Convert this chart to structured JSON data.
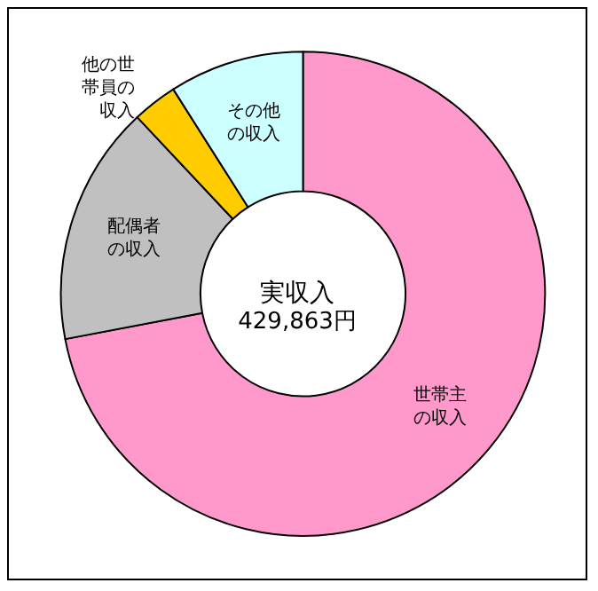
{
  "chart_data": {
    "type": "donut",
    "title": "実収入",
    "subtitle": "429,863円",
    "categories": [
      "世帯主の収入",
      "配偶者の収入",
      "他の世帯員の収入",
      "その他の収入"
    ],
    "values": [
      72,
      16,
      3,
      9
    ],
    "colors": [
      "#ff99cc",
      "#c0c0c0",
      "#ffcc00",
      "#ccffff"
    ],
    "legend": false
  }
}
